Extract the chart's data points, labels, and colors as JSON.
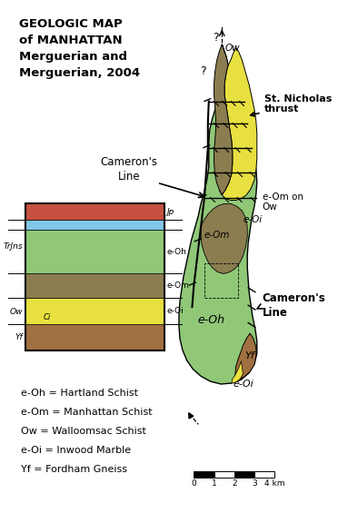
{
  "bg_color": "#ffffff",
  "title": "GEOLOGIC MAP\nof MANHATTAN\nMerguerian and\nMerguerian, 2004",
  "colors": {
    "hartland": "#90c878",
    "manhattan": "#8b7d50",
    "walloomsac": "#c8a830",
    "inwood": "#e8e040",
    "fordham": "#a07040",
    "water_blue": "#80c8e8",
    "triassic_red": "#c85040",
    "outline": "#000000"
  },
  "legend_texts": [
    "е-Oh = Hartland Schist",
    "е-Om = Manhattan Schist",
    "Ow = Walloomsac Schist",
    "е-Oi = Inwood Marble",
    "Yf = Fordham Gneiss"
  ],
  "scale_ticks": [
    "0",
    "1",
    "2",
    "3",
    "4 km"
  ]
}
